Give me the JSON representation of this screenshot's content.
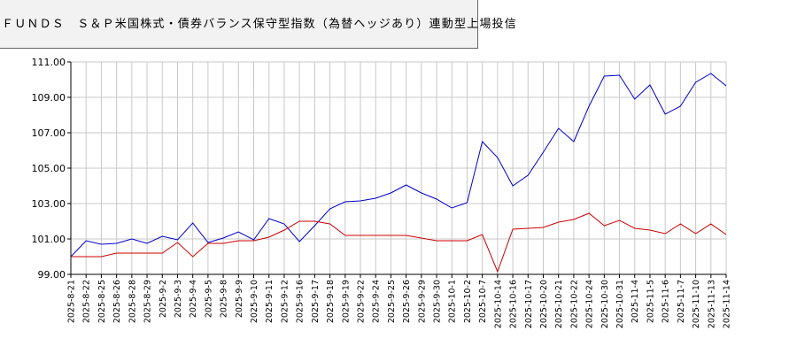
{
  "chart_data": {
    "type": "line",
    "title": "ＦＵＮＤＳ　Ｓ＆Ｐ米国株式・債券バランス保守型指数（為替ヘッジあり）連動型上場投信",
    "xlabel": "",
    "ylabel": "",
    "ylim": [
      99.0,
      111.0
    ],
    "yticks": [
      "99.00",
      "101.00",
      "103.00",
      "105.00",
      "107.00",
      "109.00",
      "111.00"
    ],
    "grid": true,
    "x": [
      "2025-8-21",
      "2025-8-22",
      "2025-8-25",
      "2025-8-26",
      "2025-8-28",
      "2025-8-29",
      "2025-9-2",
      "2025-9-3",
      "2025-9-4",
      "2025-9-5",
      "2025-9-8",
      "2025-9-9",
      "2025-9-10",
      "2025-9-11",
      "2025-9-12",
      "2025-9-16",
      "2025-9-17",
      "2025-9-18",
      "2025-9-19",
      "2025-9-22",
      "2025-9-24",
      "2025-9-25",
      "2025-9-26",
      "2025-9-29",
      "2025-9-30",
      "2025-10-1",
      "2025-10-2",
      "2025-10-7",
      "2025-10-14",
      "2025-10-16",
      "2025-10-17",
      "2025-10-20",
      "2025-10-21",
      "2025-10-22",
      "2025-10-24",
      "2025-10-30",
      "2025-10-31",
      "2025-11-4",
      "2025-11-5",
      "2025-11-6",
      "2025-11-7",
      "2025-11-10",
      "2025-11-13",
      "2025-11-14"
    ],
    "series": [
      {
        "color": "#0000cc",
        "values": [
          100.0,
          100.9,
          100.7,
          100.75,
          101.0,
          100.75,
          101.15,
          100.95,
          101.9,
          100.8,
          101.05,
          101.4,
          100.95,
          102.15,
          101.85,
          100.85,
          101.75,
          102.7,
          103.1,
          103.15,
          103.3,
          103.6,
          104.05,
          103.6,
          103.25,
          102.75,
          103.05,
          106.5,
          105.6,
          104.0,
          104.6,
          105.9,
          107.25,
          106.5,
          108.5,
          110.2,
          110.25,
          108.9,
          109.7,
          108.05,
          108.5,
          109.85,
          110.35,
          109.65
        ]
      },
      {
        "color": "#cc0000",
        "values": [
          100.0,
          100.0,
          100.0,
          100.2,
          100.2,
          100.2,
          100.2,
          100.8,
          100.0,
          100.75,
          100.75,
          100.9,
          100.9,
          101.1,
          101.5,
          102.0,
          102.0,
          101.85,
          101.2,
          101.2,
          101.2,
          101.2,
          101.2,
          101.05,
          100.9,
          100.9,
          100.9,
          101.25,
          99.15,
          101.55,
          101.6,
          101.65,
          101.95,
          102.1,
          102.45,
          101.75,
          102.05,
          101.6,
          101.5,
          101.3,
          101.85,
          101.3,
          101.85,
          101.25
        ]
      }
    ]
  }
}
